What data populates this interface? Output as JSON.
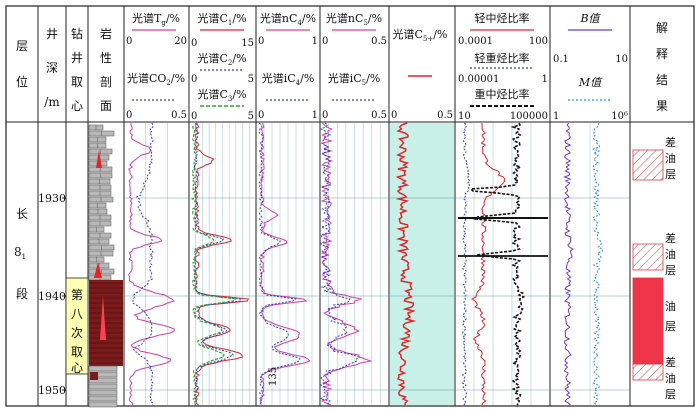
{
  "header": {
    "layer": [
      "层",
      "位"
    ],
    "depth": [
      "井",
      "深",
      "/m"
    ],
    "coring": [
      "钻",
      "井",
      "取",
      "心"
    ],
    "lithology": [
      "岩",
      "性",
      "剖",
      "面"
    ],
    "col_tg": {
      "l1": "光谱T",
      "sub1": "g",
      "u1": "/%",
      "r1": [
        "0",
        "20"
      ],
      "l2": "光谱CO",
      "sub2": "2",
      "u2": "/%",
      "r2": [
        "0",
        "0.5"
      ]
    },
    "col_c1c2c3": {
      "l1": "光谱C",
      "sub1": "1",
      "u1": "/%",
      "r1": [
        "0",
        "15"
      ],
      "l2": "光谱C",
      "sub2": "2",
      "u2": "/%",
      "r2": [
        "0",
        "5"
      ],
      "l3": "光谱C",
      "sub3": "3",
      "u3": "/%",
      "r3": [
        "0",
        "5"
      ]
    },
    "col_c4": {
      "l1": "光谱nC",
      "sub1": "4",
      "u1": "/%",
      "r1": [
        "0",
        "1"
      ],
      "l2": "光谱iC",
      "sub2": "4",
      "u2": "/%",
      "r2": [
        "0",
        "1"
      ]
    },
    "col_c5": {
      "l1": "光谱nC",
      "sub1": "5",
      "u1": "/%",
      "r1": [
        "0",
        "0.5"
      ],
      "l2": "光谱iC",
      "sub2": "5",
      "u2": "/%",
      "r2": [
        "0",
        "0.5"
      ]
    },
    "col_c5p": {
      "l1": "光谱C",
      "sub1": "5+",
      "u1": "/%",
      "r1": [
        "0",
        "0.5"
      ]
    },
    "col_ratio": {
      "l1": "轻中烃比率",
      "r1": [
        "0.0001",
        "100"
      ],
      "l2": "轻重烃比率",
      "r2": [
        "0.00001",
        "1"
      ],
      "l3": "重中烃比率",
      "r3": [
        "10",
        "100000"
      ]
    },
    "col_bm": {
      "l1": "B值",
      "r1": [
        "0.1",
        "10"
      ],
      "l2": "M值",
      "r2": [
        "1",
        "10⁶"
      ]
    },
    "interp": [
      "解",
      "释",
      "结",
      "果"
    ]
  },
  "layer_name": {
    "main": "长",
    "sub_main": "8",
    "sub_idx": "1",
    "end": "段"
  },
  "depth_ticks": [
    "1930",
    "1940",
    "1950"
  ],
  "coring_label": [
    "第",
    "八",
    "次",
    "取",
    "心"
  ],
  "annotation_135": "135",
  "interpretation": [
    {
      "label": "差油层",
      "kind": "poor"
    },
    {
      "label": "差油层",
      "kind": "poor"
    },
    {
      "label": "油层",
      "kind": "oil"
    },
    {
      "label": "差油层",
      "kind": "poor"
    }
  ],
  "colors": {
    "magenta": "#d63fa8",
    "blue": "#2f3fc8",
    "red": "#e0262a",
    "green": "#2fa52f",
    "black": "#111111",
    "purple": "#6a3fc8",
    "teal_fill": "#c8efe8",
    "oil_fill": "#f0344a",
    "poor_hatch": "#e03a3a",
    "yellow_box": "#ffffb4",
    "dark_red": "#7a1a1a",
    "grid": "#2d7f86"
  }
}
